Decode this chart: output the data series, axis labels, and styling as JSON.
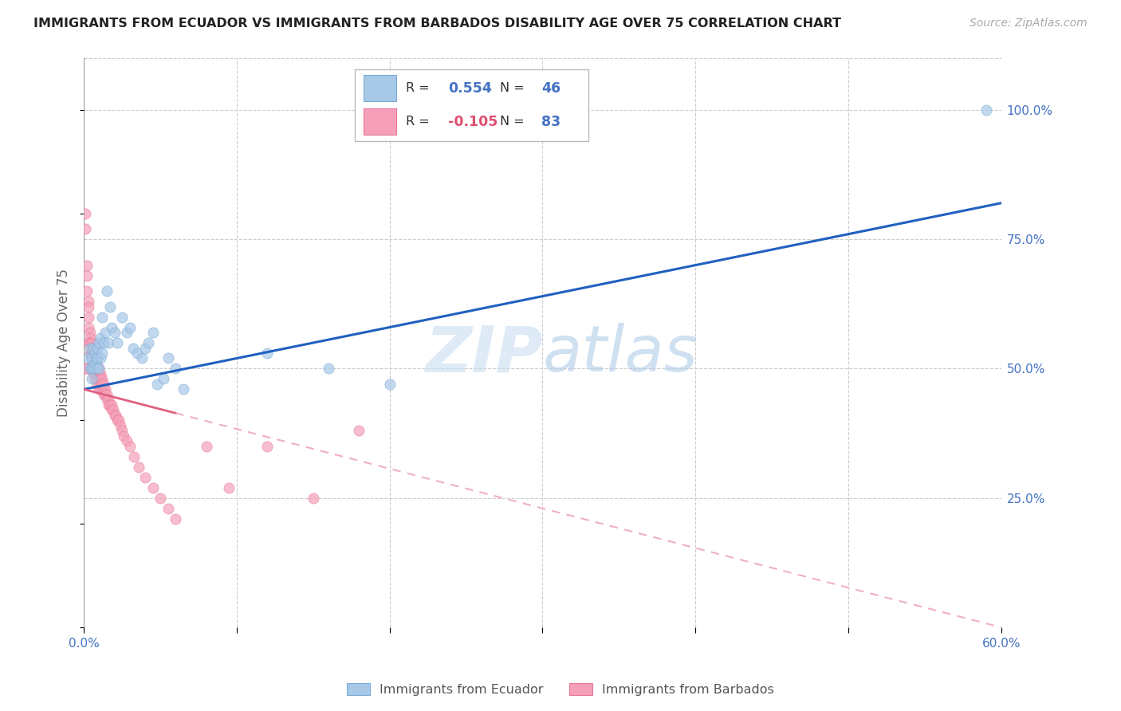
{
  "title": "IMMIGRANTS FROM ECUADOR VS IMMIGRANTS FROM BARBADOS DISABILITY AGE OVER 75 CORRELATION CHART",
  "source": "Source: ZipAtlas.com",
  "ylabel": "Disability Age Over 75",
  "xlim": [
    0.0,
    0.6
  ],
  "ylim": [
    0.0,
    1.1
  ],
  "ytick_values": [
    0.25,
    0.5,
    0.75,
    1.0
  ],
  "ytick_labels": [
    "25.0%",
    "50.0%",
    "75.0%",
    "100.0%"
  ],
  "xtick_values": [
    0.0,
    0.1,
    0.2,
    0.3,
    0.4,
    0.5,
    0.6
  ],
  "xtick_labels": [
    "0.0%",
    "",
    "",
    "",
    "",
    "",
    "60.0%"
  ],
  "ecuador_color": "#a8c8e8",
  "ecuador_edge": "#7aabd4",
  "barbados_color": "#f5a0b8",
  "barbados_edge": "#e87898",
  "ecuador_R": 0.554,
  "ecuador_N": 46,
  "barbados_R": -0.105,
  "barbados_N": 83,
  "ecuador_line_color": "#2060c0",
  "barbados_solid_color": "#e06080",
  "barbados_dash_color": "#f0b0c0",
  "watermark": "ZIPatlas",
  "ecuador_x": [
    0.003,
    0.004,
    0.004,
    0.005,
    0.005,
    0.005,
    0.006,
    0.006,
    0.007,
    0.007,
    0.008,
    0.008,
    0.009,
    0.009,
    0.01,
    0.01,
    0.011,
    0.011,
    0.012,
    0.012,
    0.013,
    0.014,
    0.015,
    0.016,
    0.017,
    0.018,
    0.02,
    0.022,
    0.025,
    0.028,
    0.03,
    0.032,
    0.035,
    0.038,
    0.04,
    0.042,
    0.045,
    0.048,
    0.052,
    0.055,
    0.06,
    0.065,
    0.12,
    0.16,
    0.2,
    0.59
  ],
  "ecuador_y": [
    0.52,
    0.5,
    0.54,
    0.5,
    0.52,
    0.48,
    0.54,
    0.5,
    0.53,
    0.51,
    0.52,
    0.5,
    0.54,
    0.52,
    0.55,
    0.5,
    0.56,
    0.52,
    0.6,
    0.53,
    0.55,
    0.57,
    0.65,
    0.55,
    0.62,
    0.58,
    0.57,
    0.55,
    0.6,
    0.57,
    0.58,
    0.54,
    0.53,
    0.52,
    0.54,
    0.55,
    0.57,
    0.47,
    0.48,
    0.52,
    0.5,
    0.46,
    0.53,
    0.5,
    0.47,
    1.0
  ],
  "barbados_x": [
    0.001,
    0.001,
    0.001,
    0.002,
    0.002,
    0.002,
    0.002,
    0.003,
    0.003,
    0.003,
    0.003,
    0.003,
    0.004,
    0.004,
    0.004,
    0.004,
    0.005,
    0.005,
    0.005,
    0.005,
    0.005,
    0.006,
    0.006,
    0.006,
    0.006,
    0.006,
    0.007,
    0.007,
    0.007,
    0.007,
    0.007,
    0.008,
    0.008,
    0.008,
    0.008,
    0.009,
    0.009,
    0.009,
    0.009,
    0.01,
    0.01,
    0.01,
    0.01,
    0.011,
    0.011,
    0.011,
    0.012,
    0.012,
    0.012,
    0.013,
    0.013,
    0.013,
    0.014,
    0.014,
    0.015,
    0.015,
    0.016,
    0.016,
    0.017,
    0.018,
    0.018,
    0.019,
    0.02,
    0.021,
    0.022,
    0.023,
    0.024,
    0.025,
    0.026,
    0.028,
    0.03,
    0.033,
    0.036,
    0.04,
    0.045,
    0.05,
    0.055,
    0.06,
    0.08,
    0.095,
    0.12,
    0.15,
    0.18
  ],
  "barbados_y": [
    0.8,
    0.77,
    0.5,
    0.7,
    0.68,
    0.65,
    0.5,
    0.63,
    0.62,
    0.6,
    0.58,
    0.55,
    0.57,
    0.56,
    0.55,
    0.53,
    0.55,
    0.54,
    0.53,
    0.52,
    0.5,
    0.53,
    0.52,
    0.51,
    0.5,
    0.49,
    0.52,
    0.51,
    0.5,
    0.49,
    0.48,
    0.51,
    0.5,
    0.49,
    0.48,
    0.5,
    0.49,
    0.48,
    0.47,
    0.5,
    0.49,
    0.48,
    0.46,
    0.49,
    0.48,
    0.47,
    0.48,
    0.47,
    0.46,
    0.47,
    0.46,
    0.45,
    0.46,
    0.45,
    0.45,
    0.44,
    0.44,
    0.43,
    0.43,
    0.43,
    0.42,
    0.42,
    0.41,
    0.41,
    0.4,
    0.4,
    0.39,
    0.38,
    0.37,
    0.36,
    0.35,
    0.33,
    0.31,
    0.29,
    0.27,
    0.25,
    0.23,
    0.21,
    0.35,
    0.27,
    0.35,
    0.25,
    0.38
  ]
}
